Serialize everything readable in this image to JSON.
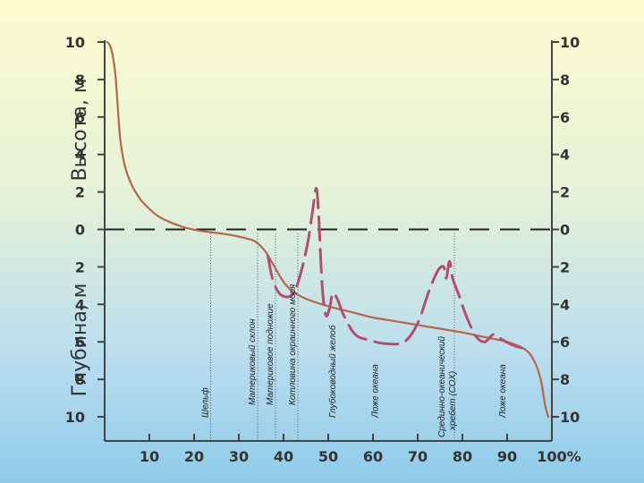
{
  "chart_data": {
    "type": "line",
    "y_axis_upper_label": "Высота, м",
    "y_axis_lower_label": "Глубина, м",
    "y_ticks": [
      {
        "label": "10",
        "v": 10
      },
      {
        "label": "8",
        "v": 8
      },
      {
        "label": "6",
        "v": 6
      },
      {
        "label": "4",
        "v": 4
      },
      {
        "label": "2",
        "v": 2
      },
      {
        "label": "0",
        "v": 0
      },
      {
        "label": "2",
        "v": -2
      },
      {
        "label": "4",
        "v": -4
      },
      {
        "label": "6",
        "v": -6
      },
      {
        "label": "8",
        "v": -8
      },
      {
        "label": "10",
        "v": -10
      }
    ],
    "x_ticks": [
      {
        "label": "10",
        "v": 10
      },
      {
        "label": "20",
        "v": 20
      },
      {
        "label": "30",
        "v": 30
      },
      {
        "label": "40",
        "v": 40
      },
      {
        "label": "50",
        "v": 50
      },
      {
        "label": "60",
        "v": 60
      },
      {
        "label": "70",
        "v": 70
      },
      {
        "label": "80",
        "v": 80
      },
      {
        "label": "90",
        "v": 90
      },
      {
        "label": "100%",
        "v": 100
      }
    ],
    "xlim": [
      0,
      100
    ],
    "ylim": [
      -10,
      10
    ],
    "zones": [
      {
        "label": "Шельф",
        "x": 22.5,
        "line": true
      },
      {
        "label": "Материковый склон",
        "x": 33,
        "line": true
      },
      {
        "label": "Материковое подножие",
        "x": 37,
        "line": true
      },
      {
        "label": "Котловина окраинного моря",
        "x": 42,
        "line": true
      },
      {
        "label": "Глубоководный желоб",
        "x": 51,
        "line": false
      },
      {
        "label": "Ложе океана",
        "x": 60.5,
        "line": false
      },
      {
        "label": "Срединно-океанический хребет (СОХ)",
        "x": 77,
        "line": true
      },
      {
        "label": "Ложе океана",
        "x": 89,
        "line": false
      }
    ],
    "series": [
      {
        "style": "solid",
        "color": "#b5674e",
        "points": [
          [
            0.5,
            10
          ],
          [
            1,
            9.9
          ],
          [
            1.5,
            9.6
          ],
          [
            2,
            9
          ],
          [
            2.5,
            8
          ],
          [
            3,
            6.3
          ],
          [
            3.5,
            4.8
          ],
          [
            4.5,
            3.4
          ],
          [
            6,
            2.4
          ],
          [
            8,
            1.6
          ],
          [
            10,
            1.1
          ],
          [
            12,
            0.7
          ],
          [
            15,
            0.35
          ],
          [
            18,
            0.1
          ],
          [
            22,
            -0.1
          ],
          [
            27,
            -0.25
          ],
          [
            32,
            -0.5
          ],
          [
            34,
            -0.7
          ],
          [
            36,
            -1.2
          ],
          [
            38,
            -2
          ],
          [
            40,
            -2.8
          ],
          [
            42,
            -3.3
          ],
          [
            45,
            -3.7
          ],
          [
            50,
            -4.1
          ],
          [
            55,
            -4.4
          ],
          [
            60,
            -4.7
          ],
          [
            65,
            -4.9
          ],
          [
            70,
            -5.1
          ],
          [
            75,
            -5.3
          ],
          [
            80,
            -5.5
          ],
          [
            85,
            -5.75
          ],
          [
            90,
            -6
          ],
          [
            94,
            -6.4
          ],
          [
            96,
            -7
          ],
          [
            97.5,
            -8
          ],
          [
            98.5,
            -9.4
          ],
          [
            99.2,
            -10
          ]
        ]
      },
      {
        "style": "dashed",
        "color": "#b0506e",
        "points": [
          [
            36.5,
            -1.4
          ],
          [
            37.5,
            -2.6
          ],
          [
            39,
            -3.4
          ],
          [
            41,
            -3.6
          ],
          [
            42.5,
            -3.3
          ],
          [
            44,
            -2.2
          ],
          [
            45.5,
            -0.6
          ],
          [
            46.5,
            1.0
          ],
          [
            47.3,
            2.2
          ],
          [
            47.8,
            1.0
          ],
          [
            48.3,
            -1.5
          ],
          [
            48.8,
            -3.5
          ],
          [
            49.5,
            -4.6
          ],
          [
            50.3,
            -4.2
          ],
          [
            51,
            -3.4
          ],
          [
            52,
            -3.7
          ],
          [
            53.5,
            -4.6
          ],
          [
            56,
            -5.6
          ],
          [
            59,
            -5.9
          ],
          [
            63,
            -6.1
          ],
          [
            67,
            -6.0
          ],
          [
            70,
            -5.0
          ],
          [
            72.5,
            -3.3
          ],
          [
            74.5,
            -2.2
          ],
          [
            75.8,
            -2.0
          ],
          [
            76.4,
            -2.6
          ],
          [
            77.1,
            -1.7
          ],
          [
            77.8,
            -2.6
          ],
          [
            79.2,
            -3.5
          ],
          [
            81,
            -4.7
          ],
          [
            83,
            -5.7
          ],
          [
            85,
            -6.0
          ],
          [
            87,
            -5.6
          ],
          [
            89,
            -5.9
          ],
          [
            91.5,
            -6.2
          ],
          [
            94.5,
            -6.4
          ]
        ]
      }
    ],
    "zero_line": {
      "style": "dashed",
      "color": "#222222"
    }
  }
}
